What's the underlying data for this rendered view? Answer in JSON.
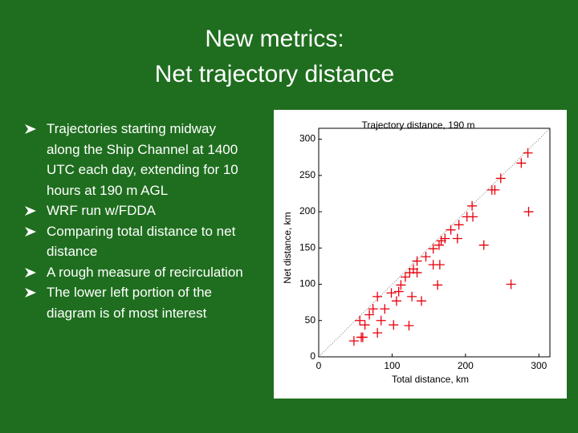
{
  "title": [
    "New metrics:",
    "Net trajectory distance"
  ],
  "bullets": [
    "Trajectories starting midway along the Ship Channel at 1400 UTC each day, extending for 10 hours at 190 m AGL",
    "WRF run w/FDDA",
    "Comparing total distance to net distance",
    "A rough measure of recirculation",
    "The lower left portion of the diagram is of most interest"
  ],
  "chart_data": {
    "type": "scatter",
    "title": "Trajectory distance, 190 m",
    "x_label": "Total distance, km",
    "y_label": "Net distance, km",
    "series": [
      {
        "color": "#e8000b",
        "x": [
          285,
          276,
          248,
          240,
          236,
          286,
          209,
          202,
          191,
          210,
          172,
          167,
          164,
          189,
          180,
          225,
          156,
          146,
          165,
          156,
          134,
          129,
          124,
          134,
          118,
          162,
          262,
          112,
          109,
          99,
          106,
          127,
          140,
          80,
          74,
          90,
          69,
          85,
          102,
          123,
          56,
          63,
          80,
          58,
          48,
          60
        ],
        "values": [
          281,
          267,
          246,
          230,
          230,
          200,
          208,
          193,
          182,
          193,
          163,
          160,
          154,
          163,
          175,
          154,
          149,
          138,
          127,
          127,
          132,
          121,
          116,
          116,
          110,
          99,
          100,
          99,
          90,
          88,
          77,
          83,
          77,
          83,
          66,
          66,
          58,
          50,
          44,
          43,
          50,
          44,
          33,
          27,
          22,
          27
        ]
      }
    ],
    "xlim": [
      0,
      315
    ],
    "ylim": [
      0,
      315
    ],
    "xticks": [
      0,
      100,
      200,
      300
    ],
    "yticks": [
      0,
      50,
      100,
      150,
      200,
      250,
      300
    ]
  }
}
